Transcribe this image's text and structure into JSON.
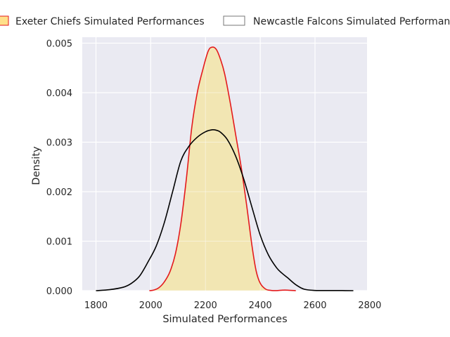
{
  "chart_data": {
    "type": "area",
    "title": "",
    "xlabel": "Simulated Performances",
    "ylabel": "Density",
    "xlim": [
      1750,
      2790
    ],
    "ylim": [
      0,
      0.00512
    ],
    "xticks": [
      1800,
      2000,
      2200,
      2400,
      2600,
      2800
    ],
    "yticks": [
      0.0,
      0.001,
      0.002,
      0.003,
      0.004,
      0.005
    ],
    "ytick_labels": [
      "0.000",
      "0.001",
      "0.002",
      "0.003",
      "0.004",
      "0.005"
    ],
    "grid": true,
    "legend_position": "top",
    "background": "#eaeaf2",
    "series": [
      {
        "name": "Exeter Chiefs Simulated Performances",
        "line_color": "#e41a1c",
        "fill_color": "#f2e6b3",
        "legend_fill": "#ffe08a",
        "legend_edge": "#e41a1c",
        "filled": true,
        "x": [
          1995,
          2010,
          2030,
          2050,
          2070,
          2090,
          2110,
          2130,
          2150,
          2170,
          2190,
          2210,
          2225,
          2240,
          2255,
          2270,
          2290,
          2310,
          2330,
          2350,
          2370,
          2385,
          2400,
          2420,
          2440,
          2460,
          2480,
          2500,
          2530
        ],
        "y": [
          0.0,
          1e-05,
          6e-05,
          0.00018,
          0.00038,
          0.00074,
          0.00135,
          0.00225,
          0.0033,
          0.004,
          0.00446,
          0.00484,
          0.00492,
          0.00487,
          0.00467,
          0.00438,
          0.00381,
          0.00316,
          0.00251,
          0.00174,
          0.0009,
          0.0004,
          0.00015,
          3e-05,
          5e-06,
          1.5e-06,
          1e-05,
          1e-05,
          0.0
        ]
      },
      {
        "name": "Newcastle Falcons Simulated Performances",
        "line_color": "#000000",
        "fill_color": "none",
        "legend_fill": "#ffffff",
        "legend_edge": "#777777",
        "filled": false,
        "x": [
          1800,
          1850,
          1900,
          1930,
          1960,
          1990,
          2020,
          2050,
          2080,
          2110,
          2140,
          2170,
          2200,
          2225,
          2240,
          2255,
          2280,
          2310,
          2340,
          2370,
          2400,
          2430,
          2460,
          2480,
          2500,
          2530,
          2560,
          2600,
          2650,
          2700,
          2740
        ],
        "y": [
          0.0,
          2e-05,
          7e-05,
          0.00015,
          0.0003,
          0.00058,
          0.0009,
          0.00138,
          0.002,
          0.00262,
          0.00292,
          0.0031,
          0.00321,
          0.00325,
          0.00324,
          0.0032,
          0.00305,
          0.00272,
          0.00225,
          0.00168,
          0.00112,
          0.00072,
          0.00046,
          0.00035,
          0.00026,
          0.00012,
          3e-05,
          5e-06,
          3e-06,
          2e-06,
          0.0
        ]
      }
    ]
  }
}
